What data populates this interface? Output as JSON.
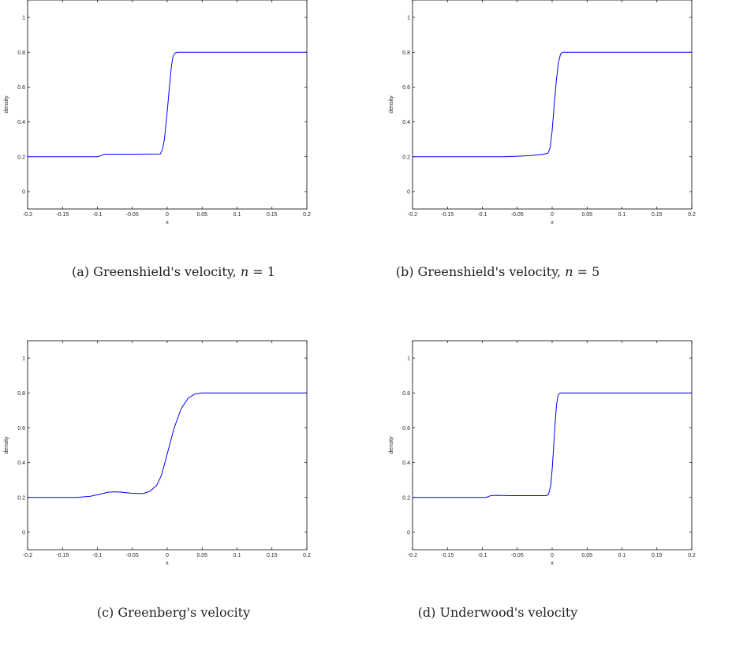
{
  "chart_data": [
    {
      "type": "line",
      "caption": {
        "label": "(a)",
        "text": "Greenshield's velocity,",
        "var": "n",
        "eq": "= 1"
      },
      "xlabel": "x",
      "ylabel": "density",
      "xlim": [
        -0.2,
        0.2
      ],
      "ylim": [
        -0.1,
        1.1
      ],
      "x_ticks": [
        "-0.2",
        "-0.15",
        "-0.1",
        "-0.05",
        "0",
        "0.05",
        "0.1",
        "0.15",
        "0.2"
      ],
      "y_ticks": [
        "0",
        "0.2",
        "0.4",
        "0.6",
        "0.8",
        "1"
      ],
      "line_color": "#0000ff",
      "series": [
        {
          "x": [
            -0.2,
            -0.1,
            -0.095,
            -0.09,
            -0.085,
            -0.05,
            -0.01,
            -0.007,
            -0.004,
            -0.002,
            0.0,
            0.002,
            0.004,
            0.006,
            0.008,
            0.01,
            0.012,
            0.016,
            0.02,
            0.1,
            0.2
          ],
          "y": [
            0.2,
            0.2,
            0.207,
            0.214,
            0.215,
            0.215,
            0.216,
            0.24,
            0.3,
            0.38,
            0.46,
            0.55,
            0.64,
            0.72,
            0.77,
            0.79,
            0.797,
            0.8,
            0.8,
            0.8,
            0.8
          ]
        }
      ]
    },
    {
      "type": "line",
      "caption": {
        "label": "(b)",
        "text": "Greenshield's velocity,",
        "var": "n",
        "eq": "= 5"
      },
      "xlabel": "x",
      "ylabel": "density",
      "xlim": [
        -0.2,
        0.2
      ],
      "ylim": [
        -0.1,
        1.1
      ],
      "x_ticks": [
        "-0.2",
        "-0.15",
        "-0.1",
        "-0.05",
        "0",
        "0.05",
        "0.1",
        "0.15",
        "0.2"
      ],
      "y_ticks": [
        "0",
        "0.2",
        "0.4",
        "0.6",
        "0.8",
        "1"
      ],
      "line_color": "#0000ff",
      "series": [
        {
          "x": [
            -0.2,
            -0.07,
            -0.05,
            -0.03,
            -0.015,
            -0.006,
            -0.003,
            0.0,
            0.003,
            0.006,
            0.009,
            0.012,
            0.015,
            0.02,
            0.1,
            0.2
          ],
          "y": [
            0.2,
            0.2,
            0.203,
            0.207,
            0.213,
            0.22,
            0.25,
            0.35,
            0.5,
            0.64,
            0.74,
            0.79,
            0.8,
            0.8,
            0.8,
            0.8
          ]
        }
      ]
    },
    {
      "type": "line",
      "caption": {
        "label": "(c)",
        "text": "Greenberg's velocity",
        "var": "",
        "eq": ""
      },
      "xlabel": "x",
      "ylabel": "density",
      "xlim": [
        -0.2,
        0.2
      ],
      "ylim": [
        -0.1,
        1.1
      ],
      "x_ticks": [
        "-0.2",
        "-0.15",
        "-0.1",
        "-0.05",
        "0",
        "0.05",
        "0.1",
        "0.15",
        "0.2"
      ],
      "y_ticks": [
        "0",
        "0.2",
        "0.4",
        "0.6",
        "0.8",
        "1"
      ],
      "line_color": "#0000ff",
      "series": [
        {
          "x": [
            -0.2,
            -0.13,
            -0.11,
            -0.095,
            -0.085,
            -0.075,
            -0.065,
            -0.05,
            -0.035,
            -0.025,
            -0.015,
            -0.008,
            0.0,
            0.01,
            0.02,
            0.03,
            0.04,
            0.05,
            0.1,
            0.2
          ],
          "y": [
            0.2,
            0.2,
            0.207,
            0.22,
            0.23,
            0.232,
            0.23,
            0.224,
            0.222,
            0.235,
            0.27,
            0.33,
            0.45,
            0.6,
            0.71,
            0.77,
            0.795,
            0.8,
            0.8,
            0.8
          ]
        }
      ]
    },
    {
      "type": "line",
      "caption": {
        "label": "(d)",
        "text": "Underwood's velocity",
        "var": "",
        "eq": ""
      },
      "xlabel": "x",
      "ylabel": "density",
      "xlim": [
        -0.2,
        0.2
      ],
      "ylim": [
        -0.1,
        1.1
      ],
      "x_ticks": [
        "-0.2",
        "-0.15",
        "-0.1",
        "-0.05",
        "0",
        "0.05",
        "0.1",
        "0.15",
        "0.2"
      ],
      "y_ticks": [
        "0",
        "0.2",
        "0.4",
        "0.6",
        "0.8",
        "1"
      ],
      "line_color": "#0000ff",
      "series": [
        {
          "x": [
            -0.2,
            -0.095,
            -0.088,
            -0.08,
            -0.06,
            -0.008,
            -0.005,
            -0.002,
            0.0,
            0.002,
            0.004,
            0.006,
            0.008,
            0.01,
            0.012,
            0.016,
            0.1,
            0.2
          ],
          "y": [
            0.2,
            0.2,
            0.21,
            0.212,
            0.21,
            0.21,
            0.22,
            0.27,
            0.36,
            0.48,
            0.61,
            0.72,
            0.78,
            0.797,
            0.8,
            0.8,
            0.8,
            0.8
          ]
        }
      ]
    }
  ]
}
